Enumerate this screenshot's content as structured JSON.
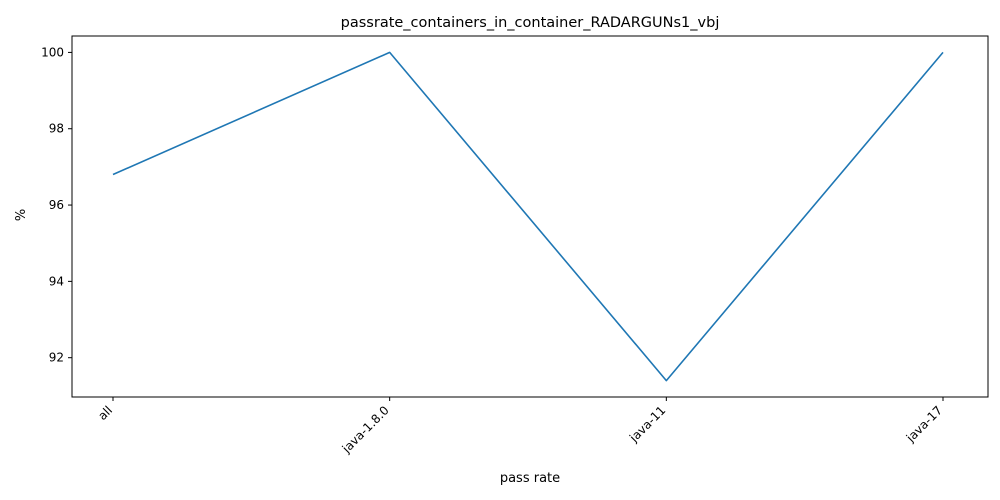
{
  "chart_data": {
    "type": "line",
    "title": "passrate_containers_in_container_RADARGUNs1_vbj",
    "xlabel": "pass rate",
    "ylabel": "%",
    "categories": [
      "all",
      "java-1.8.0",
      "java-11",
      "java-17"
    ],
    "series": [
      {
        "values": [
          96.8,
          100.0,
          91.4,
          100.0
        ],
        "color": "#1f77b4"
      }
    ],
    "ylim": [
      90.97,
      100.43
    ],
    "yticks": [
      92,
      94,
      96,
      98,
      100
    ],
    "grid": false,
    "legend": "none"
  }
}
